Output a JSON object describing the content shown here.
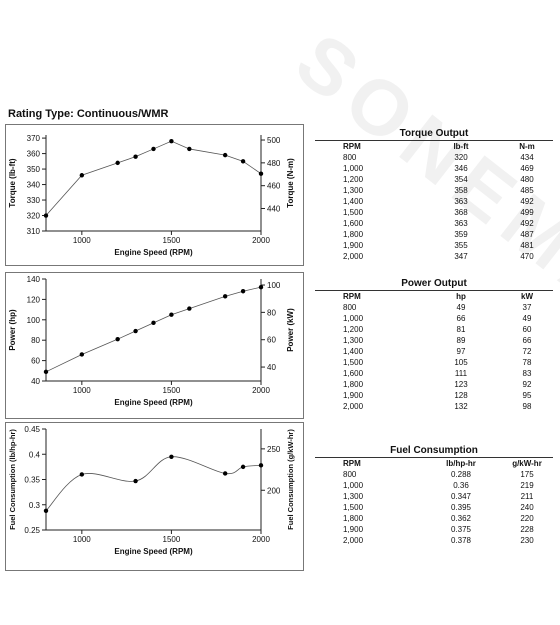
{
  "header": {
    "rating": "Rating Type: Continuous/WMR"
  },
  "watermark": {
    "text": "SONEMAC"
  },
  "chart_data": [
    {
      "type": "line",
      "x": [
        800,
        1000,
        1200,
        1300,
        1400,
        1500,
        1600,
        1800,
        1900,
        2000
      ],
      "series": [
        {
          "values": [
            320,
            346,
            354,
            358,
            363,
            368,
            363,
            359,
            355,
            347
          ]
        }
      ],
      "xlabel": "Engine Speed (RPM)",
      "ylabel": "Torque (lb-ft)",
      "y2label": "Torque (N-m)",
      "xlim": [
        800,
        2000
      ],
      "ylim": [
        310,
        372
      ],
      "y2lim": [
        420.3,
        504.4
      ],
      "xticks": [
        1000,
        1500,
        2000
      ],
      "yticks": [
        310,
        320,
        330,
        340,
        350,
        360,
        370
      ],
      "y2ticks": [
        440,
        460,
        480,
        500
      ],
      "grid": false
    },
    {
      "type": "line",
      "x": [
        800,
        1000,
        1200,
        1300,
        1400,
        1500,
        1600,
        1800,
        1900,
        2000
      ],
      "series": [
        {
          "values": [
            49,
            66,
            81,
            89,
            97,
            105,
            111,
            123,
            128,
            132
          ]
        }
      ],
      "xlabel": "Engine Speed (RPM)",
      "ylabel": "Power (hp)",
      "y2label": "Power (kW)",
      "xlim": [
        800,
        2000
      ],
      "ylim": [
        40,
        140
      ],
      "y2lim": [
        29.8,
        104.4
      ],
      "xticks": [
        1000,
        1500,
        2000
      ],
      "yticks": [
        40,
        60,
        80,
        100,
        120,
        140
      ],
      "y2ticks": [
        40,
        60,
        80,
        100
      ],
      "grid": false
    },
    {
      "type": "line",
      "x": [
        800,
        1000,
        1300,
        1500,
        1800,
        1900,
        2000
      ],
      "series": [
        {
          "values": [
            0.288,
            0.36,
            0.347,
            0.395,
            0.362,
            0.375,
            0.378
          ]
        }
      ],
      "xlabel": "Engine Speed (RPM)",
      "ylabel": "Fuel Consumption (lb/hp-hr)",
      "y2label": "Fuel Consumption (g/kW-hr)",
      "xlim": [
        800,
        2000
      ],
      "ylim": [
        0.25,
        0.45
      ],
      "y2lim": [
        152,
        274
      ],
      "xticks": [
        1000,
        1500,
        2000
      ],
      "yticks": [
        0.25,
        0.3,
        0.35,
        0.4,
        0.45
      ],
      "y2ticks": [
        200,
        250
      ],
      "grid": false
    }
  ],
  "tables": [
    {
      "title": "Torque Output",
      "headers": [
        "RPM",
        "lb-ft",
        "N-m"
      ],
      "rows": [
        [
          "800",
          "320",
          "434"
        ],
        [
          "1,000",
          "346",
          "469"
        ],
        [
          "1,200",
          "354",
          "480"
        ],
        [
          "1,300",
          "358",
          "485"
        ],
        [
          "1,400",
          "363",
          "492"
        ],
        [
          "1,500",
          "368",
          "499"
        ],
        [
          "1,600",
          "363",
          "492"
        ],
        [
          "1,800",
          "359",
          "487"
        ],
        [
          "1,900",
          "355",
          "481"
        ],
        [
          "2,000",
          "347",
          "470"
        ]
      ]
    },
    {
      "title": "Power Output",
      "headers": [
        "RPM",
        "hp",
        "kW"
      ],
      "rows": [
        [
          "800",
          "49",
          "37"
        ],
        [
          "1,000",
          "66",
          "49"
        ],
        [
          "1,200",
          "81",
          "60"
        ],
        [
          "1,300",
          "89",
          "66"
        ],
        [
          "1,400",
          "97",
          "72"
        ],
        [
          "1,500",
          "105",
          "78"
        ],
        [
          "1,600",
          "111",
          "83"
        ],
        [
          "1,800",
          "123",
          "92"
        ],
        [
          "1,900",
          "128",
          "95"
        ],
        [
          "2,000",
          "132",
          "98"
        ]
      ]
    },
    {
      "title": "Fuel Consumption",
      "headers": [
        "RPM",
        "lb/hp-hr",
        "g/kW-hr"
      ],
      "rows": [
        [
          "800",
          "0.288",
          "175"
        ],
        [
          "1,000",
          "0.36",
          "219"
        ],
        [
          "1,300",
          "0.347",
          "211"
        ],
        [
          "1,500",
          "0.395",
          "240"
        ],
        [
          "1,800",
          "0.362",
          "220"
        ],
        [
          "1,900",
          "0.375",
          "228"
        ],
        [
          "2,000",
          "0.378",
          "230"
        ]
      ]
    }
  ]
}
